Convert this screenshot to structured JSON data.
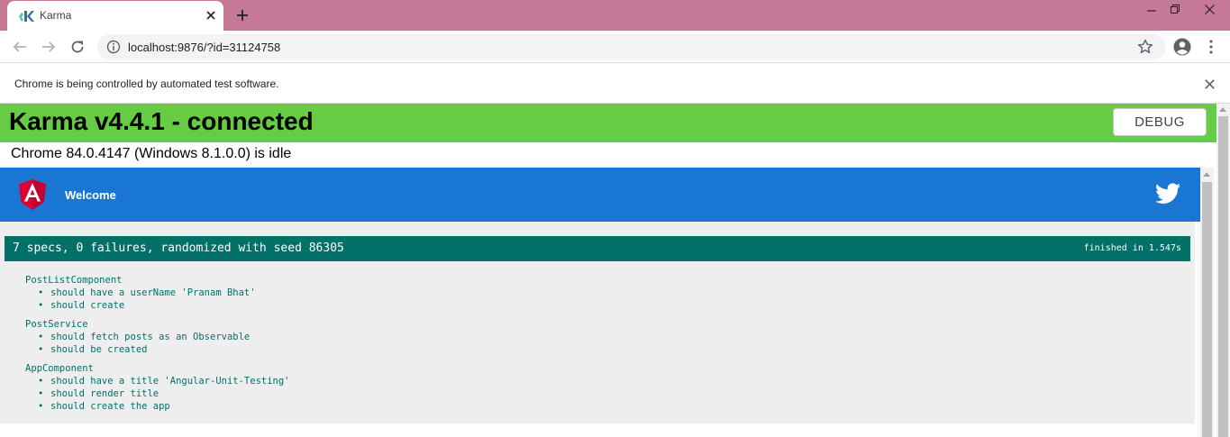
{
  "tab": {
    "title": "Karma"
  },
  "toolbar": {
    "url": "localhost:9876/?id=31124758"
  },
  "infobar": {
    "message": "Chrome is being controlled by automated test software."
  },
  "karma": {
    "title": "Karma v4.4.1 - connected",
    "debug_label": "DEBUG",
    "browser_status": "Chrome 84.0.4147 (Windows 8.1.0.0) is idle"
  },
  "app_header": {
    "title": "Welcome"
  },
  "jasmine": {
    "summary": "7 specs, 0 failures, randomized with seed 86305",
    "duration": "finished in 1.547s",
    "suites": [
      {
        "name": "PostListComponent",
        "specs": [
          "should have a userName 'Pranam Bhat'",
          "should create"
        ]
      },
      {
        "name": "PostService",
        "specs": [
          "should fetch posts as an Observable",
          "should be created"
        ]
      },
      {
        "name": "AppComponent",
        "specs": [
          "should have a title 'Angular-Unit-Testing'",
          "should render title",
          "should create the app"
        ]
      }
    ]
  },
  "colors": {
    "tabstrip": "#c57997",
    "karma_banner": "#66cc44",
    "app_header": "#1976d2",
    "jasmine_bar": "#007069"
  },
  "icons": [
    "karma-favicon",
    "close-icon",
    "plus-icon",
    "minimize-icon",
    "restore-icon",
    "window-close-icon",
    "back-arrow-icon",
    "forward-arrow-icon",
    "reload-icon",
    "info-icon",
    "star-icon",
    "account-icon",
    "kebab-menu-icon",
    "angular-logo-icon",
    "twitter-icon"
  ]
}
